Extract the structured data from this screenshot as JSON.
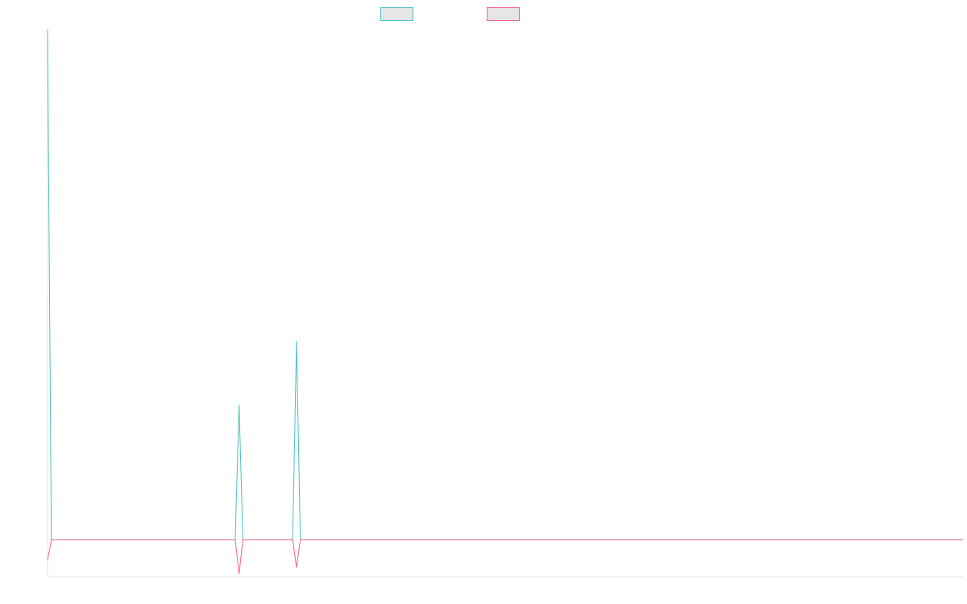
{
  "chart_data": {
    "type": "line",
    "title": "",
    "xlabel": "",
    "ylabel": "",
    "grid": false,
    "legend_position": "top-center",
    "colors": {
      "series_1": "#4bc0c0",
      "series_2": "#ff6384",
      "legend_fill": "#e5e5e5",
      "axis": "#e6e6e6"
    },
    "x_count": 240,
    "xlim": [
      0,
      239
    ],
    "ylim": [
      -1.45,
      20
    ],
    "series": [
      {
        "key": "series_1",
        "points": [
          [
            0,
            20
          ],
          [
            1,
            0
          ],
          [
            49,
            0
          ],
          [
            50,
            5.3
          ],
          [
            51,
            0
          ],
          [
            64,
            0
          ],
          [
            65,
            7.8
          ],
          [
            66,
            0
          ],
          [
            239,
            0
          ]
        ]
      },
      {
        "key": "series_2",
        "points": [
          [
            0,
            -0.8
          ],
          [
            1,
            0
          ],
          [
            49,
            0
          ],
          [
            50,
            -1.35
          ],
          [
            51,
            0
          ],
          [
            64,
            0
          ],
          [
            65,
            -1.1
          ],
          [
            66,
            0
          ],
          [
            239,
            0
          ]
        ]
      }
    ]
  }
}
